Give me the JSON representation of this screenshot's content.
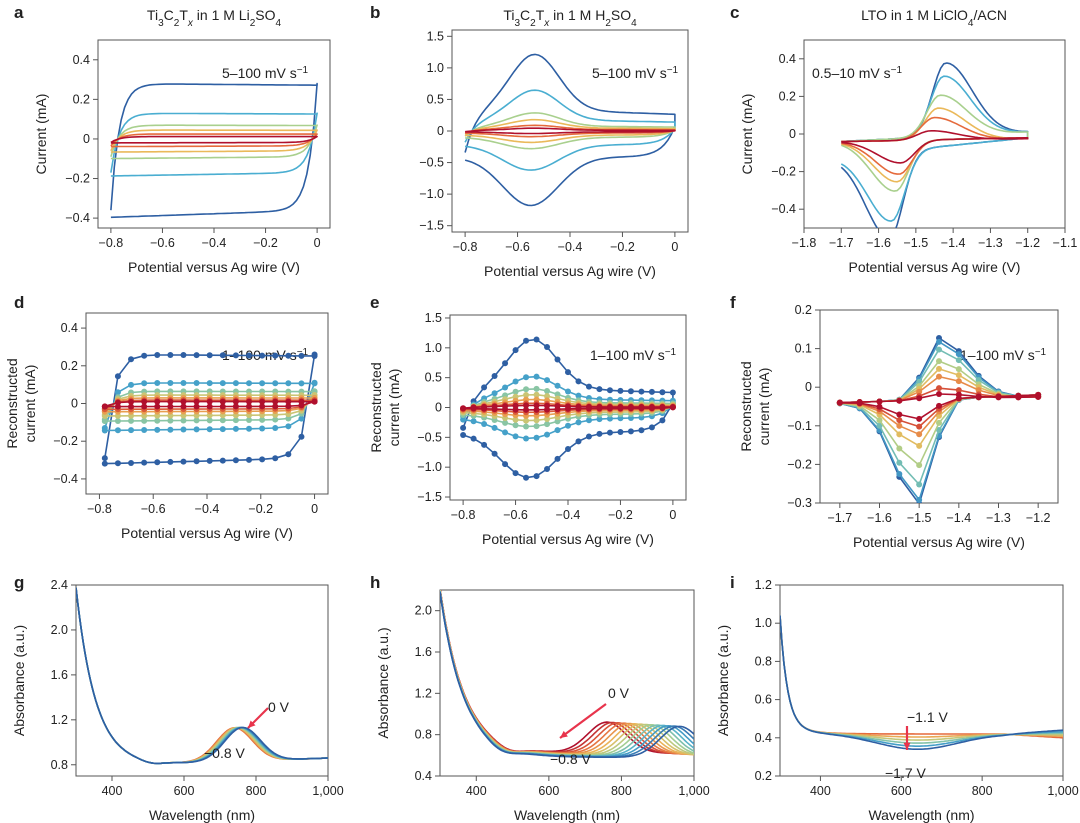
{
  "colors": [
    "#2e5fa3",
    "#4aaed1",
    "#a9d08e",
    "#eab95a",
    "#e56a3c",
    "#b0102d"
  ],
  "panels": [
    {
      "id": "a",
      "title": "Ti3C2Tx in 1 M Li2SO4",
      "title_parts": [
        [
          "Ti",
          ""
        ],
        [
          "3",
          "sub"
        ],
        [
          "C",
          ""
        ],
        [
          "2",
          "sub"
        ],
        [
          "T",
          ""
        ],
        [
          "x",
          "subi"
        ],
        [
          " in 1 M Li",
          ""
        ],
        [
          "2",
          "sub"
        ],
        [
          "SO",
          ""
        ],
        [
          "4",
          "sub"
        ]
      ],
      "annotation": "5–100 mV s",
      "annotation_sup": "−1",
      "xlabel": "Potential versus Ag wire (V)",
      "ylabel": [
        "Current (mA)"
      ]
    },
    {
      "id": "b",
      "title": "Ti3C2Tx in 1 M H2SO4",
      "title_parts": [
        [
          "Ti",
          ""
        ],
        [
          "3",
          "sub"
        ],
        [
          "C",
          ""
        ],
        [
          "2",
          "sub"
        ],
        [
          "T",
          ""
        ],
        [
          "x",
          "subi"
        ],
        [
          " in 1 M H",
          ""
        ],
        [
          "2",
          "sub"
        ],
        [
          "SO",
          ""
        ],
        [
          "4",
          "sub"
        ]
      ],
      "annotation": "5–100 mV s",
      "annotation_sup": "−1",
      "xlabel": "Potential versus Ag wire (V)",
      "ylabel": []
    },
    {
      "id": "c",
      "title": "LTO in 1 M LiClO4/ACN",
      "title_parts": [
        [
          "LTO in 1 M LiClO",
          ""
        ],
        [
          "4",
          "sub"
        ],
        [
          "/ACN",
          ""
        ]
      ],
      "annotation": "0.5–10 mV s",
      "annotation_sup": "−1",
      "xlabel": "Potential versus Ag wire (V)",
      "ylabel": [
        "Current (mA)"
      ]
    },
    {
      "id": "d",
      "title": "",
      "title_parts": [],
      "annotation": "1–100 mV s",
      "annotation_sup": "−1",
      "xlabel": "Potential versus Ag wire (V)",
      "ylabel": [
        "Reconstructed",
        "current (mA)"
      ]
    },
    {
      "id": "e",
      "title": "",
      "title_parts": [],
      "annotation": "1–100 mV s",
      "annotation_sup": "−1",
      "xlabel": "Potential versus Ag wire (V)",
      "ylabel": [
        "Reconstructed",
        "current (mA)"
      ]
    },
    {
      "id": "f",
      "title": "",
      "title_parts": [],
      "annotation": "1–100 mV s",
      "annotation_sup": "−1",
      "xlabel": "Potential versus Ag wire (V)",
      "ylabel": [
        "Reconstructed",
        "current (mA)"
      ]
    },
    {
      "id": "g",
      "title": "",
      "title_parts": [],
      "annotation": "",
      "annotation_sup": "",
      "xlabel": "Wavelength (nm)",
      "ylabel": [
        "Absorbance (a.u.)"
      ],
      "arrow_labels": [
        "0 V",
        "−0.8 V"
      ]
    },
    {
      "id": "h",
      "title": "",
      "title_parts": [],
      "annotation": "",
      "annotation_sup": "",
      "xlabel": "Wavelength (nm)",
      "ylabel": [
        "Absorbance (a.u.)"
      ],
      "arrow_labels": [
        "0 V",
        "−0.8 V"
      ]
    },
    {
      "id": "i",
      "title": "",
      "title_parts": [],
      "annotation": "",
      "annotation_sup": "",
      "xlabel": "Wavelength (nm)",
      "ylabel": [
        "Absorbance (a.u.)"
      ],
      "arrow_labels": [
        "−1.1 V",
        "−1.7 V"
      ]
    }
  ],
  "chart_data": [
    {
      "panel": "a",
      "type": "line",
      "title": "Ti3C2Tx in 1 M Li2SO4",
      "xlim": [
        -0.85,
        0.05
      ],
      "ylim": [
        -0.45,
        0.5
      ],
      "xticks": [
        -0.8,
        -0.6,
        -0.4,
        -0.2,
        0
      ],
      "xtick_labels": [
        "−0.8",
        "−0.6",
        "−0.4",
        "−0.2",
        "0"
      ],
      "yticks": [
        -0.4,
        -0.2,
        0,
        0.2,
        0.4
      ],
      "ytick_labels": [
        "−0.4",
        "−0.2",
        "0",
        "0.2",
        "0.4"
      ],
      "curve_model": "rectangular_cv",
      "x_range": [
        -0.8,
        0
      ],
      "series_amplitudes": [
        {
          "top": 0.28,
          "bot": -0.36
        },
        {
          "top": 0.13,
          "bot": -0.17
        },
        {
          "top": 0.07,
          "bot": -0.09
        },
        {
          "top": 0.045,
          "bot": -0.06
        },
        {
          "top": 0.025,
          "bot": -0.035
        },
        {
          "top": 0.012,
          "bot": -0.018
        }
      ]
    },
    {
      "panel": "b",
      "type": "line",
      "title": "Ti3C2Tx in 1 M H2SO4",
      "xlim": [
        -0.85,
        0.05
      ],
      "ylim": [
        -1.6,
        1.6
      ],
      "xticks": [
        -0.8,
        -0.6,
        -0.4,
        -0.2,
        0
      ],
      "xtick_labels": [
        "−0.8",
        "−0.6",
        "−0.4",
        "−0.2",
        "0"
      ],
      "yticks": [
        -1.5,
        -1.0,
        -0.5,
        0,
        0.5,
        1.0,
        1.5
      ],
      "ytick_labels": [
        "−1.5",
        "−1.0",
        "−0.5",
        "0",
        "0.5",
        "1.0",
        "1.5"
      ],
      "curve_model": "redox_cv",
      "x_range": [
        -0.8,
        0
      ],
      "series_amplitudes": [
        {
          "scale": 1.0,
          "peak": 1.35,
          "trough": -1.18
        },
        {
          "scale": 0.55,
          "peak": 0.72,
          "trough": -0.62
        },
        {
          "scale": 0.3,
          "peak": 0.32,
          "trough": -0.28
        },
        {
          "scale": 0.2,
          "peak": 0.2,
          "trough": -0.18
        },
        {
          "scale": 0.12,
          "peak": 0.1,
          "trough": -0.09
        },
        {
          "scale": 0.06,
          "peak": 0.05,
          "trough": -0.04
        }
      ]
    },
    {
      "panel": "c",
      "type": "line",
      "title": "LTO in 1 M LiClO4/ACN",
      "xlim": [
        -1.8,
        -1.1
      ],
      "ylim": [
        -0.5,
        0.5
      ],
      "xticks": [
        -1.8,
        -1.7,
        -1.6,
        -1.5,
        -1.4,
        -1.3,
        -1.2,
        -1.1
      ],
      "xtick_labels": [
        "−1.8",
        "−1.7",
        "−1.6",
        "−1.5",
        "−1.4",
        "−1.3",
        "−1.2",
        "−1.1"
      ],
      "yticks": [
        -0.4,
        -0.2,
        0,
        0.2,
        0.4
      ],
      "ytick_labels": [
        "−0.4",
        "−0.2",
        "0",
        "0.2",
        "0.4"
      ],
      "curve_model": "battery_cv",
      "x_range": [
        -1.7,
        -1.2
      ],
      "series_amplitudes": [
        {
          "ox": 0.39,
          "red": -0.46,
          "oxp": -1.42,
          "redp": -1.57
        },
        {
          "ox": 0.32,
          "red": -0.37,
          "oxp": -1.425,
          "redp": -1.565
        },
        {
          "ox": 0.22,
          "red": -0.27,
          "oxp": -1.435,
          "redp": -1.555
        },
        {
          "ox": 0.17,
          "red": -0.22,
          "oxp": -1.44,
          "redp": -1.55
        },
        {
          "ox": 0.12,
          "red": -0.18,
          "oxp": -1.45,
          "redp": -1.545
        },
        {
          "ox": 0.05,
          "red": -0.12,
          "oxp": -1.46,
          "redp": -1.54
        }
      ]
    },
    {
      "panel": "d",
      "type": "line",
      "markers": true,
      "xlim": [
        -0.85,
        0.05
      ],
      "ylim": [
        -0.48,
        0.48
      ],
      "xticks": [
        -0.8,
        -0.6,
        -0.4,
        -0.2,
        0
      ],
      "xtick_labels": [
        "−0.8",
        "−0.6",
        "−0.4",
        "−0.2",
        "0"
      ],
      "yticks": [
        -0.4,
        -0.2,
        0,
        0.2,
        0.4
      ],
      "ytick_labels": [
        "−0.4",
        "−0.2",
        "0",
        "0.2",
        "0.4"
      ],
      "curve_model": "rectangular_cv_points",
      "x_range": [
        -0.78,
        0
      ],
      "series_amplitudes": [
        {
          "top": 0.26,
          "bot": -0.29
        },
        {
          "top": 0.11,
          "bot": -0.13
        },
        {
          "top": 0.065,
          "bot": -0.085
        },
        {
          "top": 0.045,
          "bot": -0.06
        },
        {
          "top": 0.03,
          "bot": -0.04
        },
        {
          "top": 0.018,
          "bot": -0.028
        },
        {
          "top": 0.01,
          "bot": -0.015
        }
      ]
    },
    {
      "panel": "e",
      "type": "line",
      "markers": true,
      "xlim": [
        -0.85,
        0.05
      ],
      "ylim": [
        -1.55,
        1.55
      ],
      "xticks": [
        -0.8,
        -0.6,
        -0.4,
        -0.2,
        0
      ],
      "xtick_labels": [
        "−0.8",
        "−0.6",
        "−0.4",
        "−0.2",
        "0"
      ],
      "yticks": [
        -1.5,
        -1.0,
        -0.5,
        0,
        0.5,
        1.0,
        1.5
      ],
      "ytick_labels": [
        "−1.5",
        "−1.0",
        "−0.5",
        "0",
        "0.5",
        "1.0",
        "1.5"
      ],
      "curve_model": "redox_cv_points",
      "x_range": [
        -0.8,
        0
      ],
      "series_amplitudes": [
        {
          "peak": 1.28,
          "trough": -1.18
        },
        {
          "peak": 0.58,
          "trough": -0.52
        },
        {
          "peak": 0.35,
          "trough": -0.32
        },
        {
          "peak": 0.24,
          "trough": -0.22
        },
        {
          "peak": 0.15,
          "trough": -0.14
        },
        {
          "peak": 0.08,
          "trough": -0.08
        },
        {
          "peak": 0.04,
          "trough": -0.04
        }
      ]
    },
    {
      "panel": "f",
      "type": "line",
      "markers": true,
      "xlim": [
        -1.75,
        -1.15
      ],
      "ylim": [
        -0.3,
        0.2
      ],
      "xticks": [
        -1.7,
        -1.6,
        -1.5,
        -1.4,
        -1.3,
        -1.2
      ],
      "xtick_labels": [
        "−1.7",
        "−1.6",
        "−1.5",
        "−1.4",
        "−1.3",
        "−1.2"
      ],
      "yticks": [
        -0.3,
        -0.2,
        -0.1,
        0,
        0.1,
        0.2
      ],
      "ytick_labels": [
        "−0.3",
        "−0.2",
        "−0.1",
        "0",
        "0.1",
        "0.2"
      ],
      "curve_model": "battery_cv_points",
      "x_range": [
        -1.7,
        -1.2
      ],
      "series_amplitudes": [
        {
          "ox": 0.16,
          "red": -0.27
        },
        {
          "ox": 0.15,
          "red": -0.26
        },
        {
          "ox": 0.13,
          "red": -0.22
        },
        {
          "ox": 0.1,
          "red": -0.17
        },
        {
          "ox": 0.08,
          "red": -0.12
        },
        {
          "ox": 0.06,
          "red": -0.09
        },
        {
          "ox": 0.03,
          "red": -0.07
        },
        {
          "ox": 0.015,
          "red": -0.05
        }
      ]
    },
    {
      "panel": "g",
      "type": "line",
      "xlim": [
        300,
        1000
      ],
      "ylim": [
        0.7,
        2.4
      ],
      "xticks": [
        400,
        600,
        800,
        1000
      ],
      "xtick_labels": [
        "400",
        "600",
        "800",
        "1,000"
      ],
      "yticks": [
        0.8,
        1.2,
        1.6,
        2.0,
        2.4
      ],
      "ytick_labels": [
        "0.8",
        "1.2",
        "1.6",
        "2.0",
        "2.4"
      ],
      "curve_model": "uvvis_g",
      "series_count": 10
    },
    {
      "panel": "h",
      "type": "line",
      "xlim": [
        300,
        1000
      ],
      "ylim": [
        0.4,
        2.2
      ],
      "xticks": [
        400,
        600,
        800,
        1000
      ],
      "xtick_labels": [
        "400",
        "600",
        "800",
        "1,000"
      ],
      "yticks": [
        0.4,
        0.8,
        1.2,
        1.6,
        2.0
      ],
      "ytick_labels": [
        "0.4",
        "0.8",
        "1.2",
        "1.6",
        "2.0"
      ],
      "curve_model": "uvvis_h",
      "series_count": 14
    },
    {
      "panel": "i",
      "type": "line",
      "xlim": [
        300,
        1000
      ],
      "ylim": [
        0.2,
        1.2
      ],
      "xticks": [
        400,
        600,
        800,
        1000
      ],
      "xtick_labels": [
        "400",
        "600",
        "800",
        "1,000"
      ],
      "yticks": [
        0.2,
        0.4,
        0.6,
        0.8,
        1.0,
        1.2
      ],
      "ytick_labels": [
        "0.2",
        "0.4",
        "0.6",
        "0.8",
        "1.0",
        "1.2"
      ],
      "curve_model": "uvvis_i",
      "series_count": 6
    }
  ]
}
